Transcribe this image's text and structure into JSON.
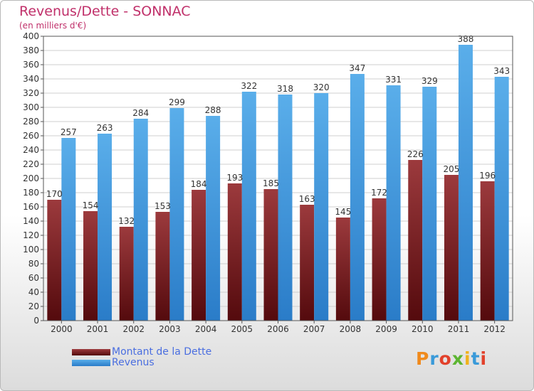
{
  "chart_data": {
    "type": "bar",
    "title": "Revenus/Dette - SONNAC",
    "subtitle": "(en milliers d'€)",
    "categories": [
      "2000",
      "2001",
      "2002",
      "2003",
      "2004",
      "2005",
      "2006",
      "2007",
      "2008",
      "2009",
      "2010",
      "2011",
      "2012"
    ],
    "series": [
      {
        "name": "Montant de la Dette",
        "color": "#7a1f22",
        "values": [
          170,
          154,
          132,
          153,
          184,
          193,
          185,
          163,
          145,
          172,
          226,
          205,
          196
        ]
      },
      {
        "name": "Revenus",
        "color": "#4a9fe0",
        "values": [
          257,
          263,
          284,
          299,
          288,
          322,
          318,
          320,
          347,
          331,
          329,
          388,
          343
        ]
      }
    ],
    "ylim": [
      0,
      400
    ],
    "ytick_step": 20,
    "grid": true,
    "legend_position": "bottom-left"
  },
  "logo": {
    "text": "Proxiti",
    "letters": [
      {
        "ch": "P",
        "color": "#f08a1c"
      },
      {
        "ch": "r",
        "color": "#3a9ad9"
      },
      {
        "ch": "o",
        "color": "#e2412b"
      },
      {
        "ch": "x",
        "color": "#5cb531"
      },
      {
        "ch": "i",
        "color": "#f0b21c"
      },
      {
        "ch": "t",
        "color": "#3a9ad9"
      },
      {
        "ch": "i",
        "color": "#e2412b"
      }
    ]
  }
}
